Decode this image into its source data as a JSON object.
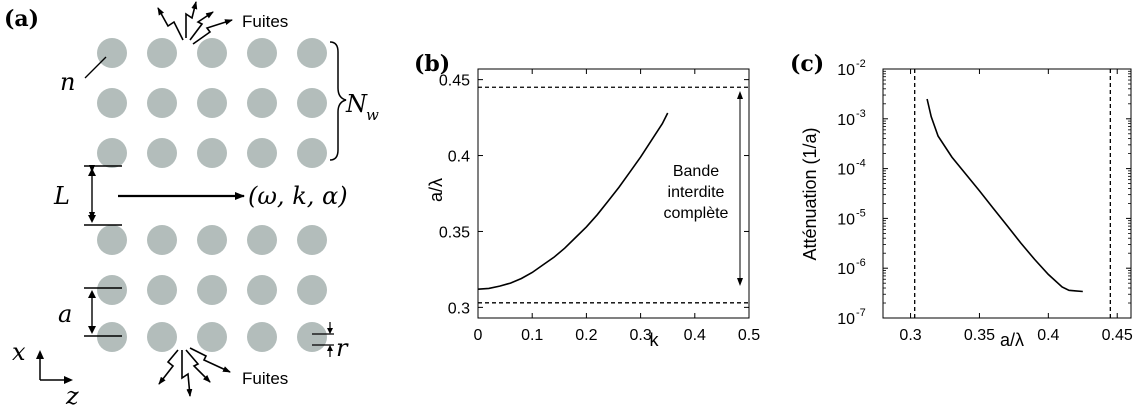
{
  "panel_a": {
    "tag": "(a)",
    "leak_label_top": "Fuites",
    "leak_label_bottom": "Fuites",
    "n_label": "n",
    "nw_label": "N",
    "nw_sub": "w",
    "L_label": "L",
    "mode_label": "(ω, k, α)",
    "a_label": "a",
    "r_label": "r",
    "axis_x": "x",
    "axis_z": "z",
    "hole_color": "#b3bdbb"
  },
  "panel_b": {
    "tag": "(b)",
    "band_label_1": "Bande",
    "band_label_2": "interdite",
    "band_label_3": "complète"
  },
  "panel_c": {
    "tag": "(c)"
  },
  "chart_data": [
    {
      "type": "line",
      "panel": "(b)",
      "xlabel": "k",
      "ylabel": "a/λ",
      "xlim": [
        0,
        0.5
      ],
      "ylim": [
        0.293,
        0.457
      ],
      "xticks": [
        "0",
        "0.1",
        "0.2",
        "0.3",
        "0.4",
        "0.5"
      ],
      "yticks": [
        "0.3",
        "0.35",
        "0.4",
        "0.45"
      ],
      "band_edges": [
        0.303,
        0.445
      ],
      "series": [
        {
          "x": [
            0,
            0.02,
            0.04,
            0.06,
            0.08,
            0.1,
            0.12,
            0.14,
            0.16,
            0.18,
            0.2,
            0.22,
            0.24,
            0.26,
            0.28,
            0.3,
            0.32,
            0.34,
            0.35
          ],
          "y": [
            0.312,
            0.3125,
            0.314,
            0.316,
            0.319,
            0.323,
            0.328,
            0.333,
            0.339,
            0.346,
            0.353,
            0.361,
            0.37,
            0.379,
            0.389,
            0.399,
            0.41,
            0.421,
            0.428
          ]
        }
      ]
    },
    {
      "type": "line",
      "panel": "(c)",
      "xlabel": "a/λ",
      "ylabel": "Atténuation (1/a)",
      "xlim": [
        0.28,
        0.46
      ],
      "ylim": [
        1e-07,
        0.01
      ],
      "yscale": "log",
      "xticks": [
        "0.3",
        "0.35",
        "0.4",
        "0.45"
      ],
      "yticks": [
        "10",
        "10",
        "10",
        "10",
        "10",
        "10"
      ],
      "ytick_exponents": [
        "-7",
        "-6",
        "-5",
        "-4",
        "-3",
        "-2"
      ],
      "band_edges": [
        0.303,
        0.445
      ],
      "series": [
        {
          "x": [
            0.312,
            0.315,
            0.32,
            0.33,
            0.34,
            0.35,
            0.36,
            0.37,
            0.38,
            0.39,
            0.4,
            0.41,
            0.415,
            0.42,
            0.425
          ],
          "y": [
            0.0025,
            0.0011,
            0.00045,
            0.00017,
            7.8e-05,
            3.6e-05,
            1.6e-05,
            7.2e-06,
            3.2e-06,
            1.5e-06,
            7.5e-07,
            4.2e-07,
            3.6e-07,
            3.5e-07,
            3.4e-07
          ]
        }
      ]
    }
  ]
}
